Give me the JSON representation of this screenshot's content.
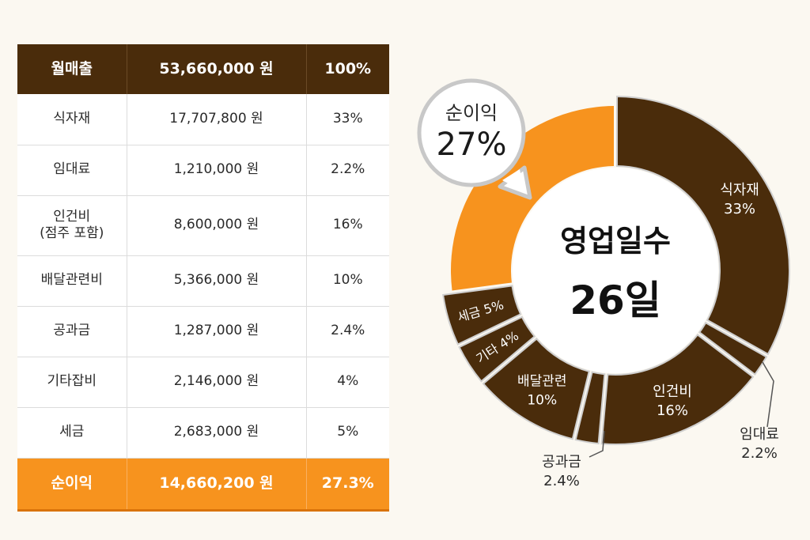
{
  "table": {
    "header": {
      "label": "월매출",
      "amount": "53,660,000 원",
      "percent": "100%"
    },
    "rows": [
      {
        "label": "식자재",
        "amount": "17,707,800 원",
        "percent": "33%"
      },
      {
        "label": "임대료",
        "amount": "1,210,000 원",
        "percent": "2.2%"
      },
      {
        "label": "인건비",
        "sublabel": "(점주 포함)",
        "amount": "8,600,000 원",
        "percent": "16%"
      },
      {
        "label": "배달관련비",
        "amount": "5,366,000 원",
        "percent": "10%"
      },
      {
        "label": "공과금",
        "amount": "1,287,000 원",
        "percent": "2.4%"
      },
      {
        "label": "기타잡비",
        "amount": "2,146,000 원",
        "percent": "4%"
      },
      {
        "label": "세금",
        "amount": "2,683,000 원",
        "percent": "5%"
      }
    ],
    "footer": {
      "label": "순이익",
      "amount": "14,660,200 원",
      "percent": "27.3%"
    }
  },
  "center": {
    "title": "영업일수",
    "value": "26일"
  },
  "callout": {
    "label": "순이익",
    "value": "27%"
  },
  "chart_data": {
    "type": "pie",
    "variant": "donut",
    "slices": [
      {
        "label": "식자재",
        "value": 33,
        "display": "33%"
      },
      {
        "label": "임대료",
        "value": 2.2,
        "display": "2.2%"
      },
      {
        "label": "인건비",
        "value": 16,
        "display": "16%"
      },
      {
        "label": "공과금",
        "value": 2.4,
        "display": "2.4%"
      },
      {
        "label": "배달관련",
        "value": 10,
        "display": "10%"
      },
      {
        "label": "기타",
        "value": 4,
        "display": "4%"
      },
      {
        "label": "세금",
        "value": 5,
        "display": "5%"
      },
      {
        "label": "순이익",
        "value": 27,
        "display": "27%",
        "highlight": true
      }
    ],
    "colors": {
      "dark": "#4a2c0b",
      "accent": "#f7931e",
      "border": "#cfcfcf",
      "background": "#fbf8f1"
    }
  }
}
